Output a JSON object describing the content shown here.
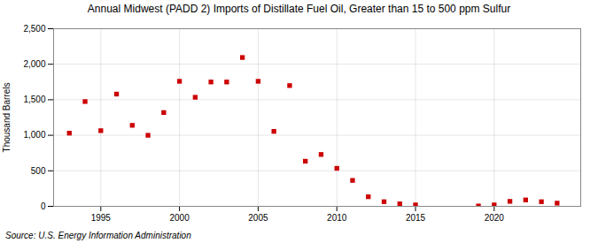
{
  "chart_data": {
    "type": "scatter",
    "title": "Annual Midwest (PADD 2) Imports of Distillate Fuel Oil, Greater than 15 to 500 ppm Sulfur",
    "ylabel": "Thousand Barrels",
    "caption": "Source: U.S. Energy Information Administration",
    "x": [
      1993,
      1994,
      1995,
      1996,
      1997,
      1998,
      1999,
      2000,
      2001,
      2002,
      2003,
      2004,
      2005,
      2006,
      2007,
      2008,
      2009,
      2010,
      2011,
      2012,
      2013,
      2014,
      2015,
      2019,
      2020,
      2021,
      2022,
      2023,
      2024
    ],
    "values": [
      1030,
      1475,
      1065,
      1580,
      1140,
      1000,
      1320,
      1760,
      1535,
      1750,
      1750,
      2095,
      1760,
      1055,
      1700,
      635,
      730,
      535,
      365,
      135,
      65,
      35,
      20,
      5,
      20,
      70,
      90,
      65,
      45
    ],
    "color": "#cc0000",
    "marker": "square",
    "grid": true,
    "xlim": [
      1992.0,
      2025.5
    ],
    "xticks": [
      1995,
      2000,
      2005,
      2010,
      2015,
      2020
    ],
    "ylim": [
      0,
      2500
    ],
    "yticks": [
      0,
      500,
      {
        "value": 1000,
        "label": "1,000"
      },
      {
        "value": 1500,
        "label": "1,500"
      },
      {
        "value": 2000,
        "label": "2,000"
      },
      {
        "value": 2500,
        "label": "2,500"
      }
    ]
  }
}
